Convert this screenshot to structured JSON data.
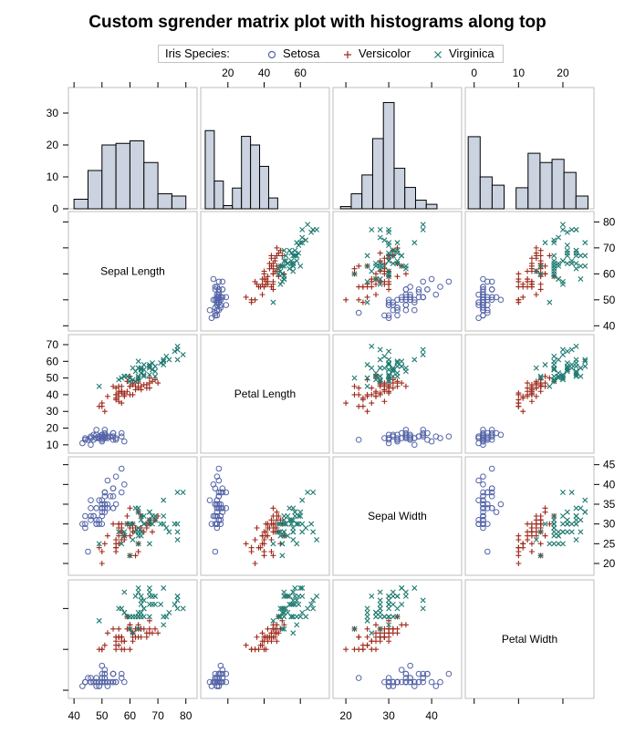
{
  "chart_data": {
    "type": "scatter-matrix",
    "title": "Custom sgrender matrix plot with histograms along top",
    "legend": {
      "title": "Iris Species:",
      "entries": [
        {
          "name": "Setosa",
          "marker": "circle",
          "color": "#5565a8"
        },
        {
          "name": "Versicolor",
          "marker": "plus",
          "color": "#9e2a1c"
        },
        {
          "name": "Virginica",
          "marker": "x",
          "color": "#1d7a70"
        }
      ],
      "placement": "top-center"
    },
    "variables": [
      {
        "name": "Sepal Length",
        "range": [
          38,
          84
        ],
        "ticks": [
          40,
          50,
          60,
          70,
          80
        ]
      },
      {
        "name": "Petal Length",
        "range": [
          5,
          76
        ],
        "ticks": [
          10,
          20,
          30,
          40,
          50,
          60,
          70
        ]
      },
      {
        "name": "Sepal Width",
        "range": [
          17,
          47
        ],
        "ticks": [
          20,
          25,
          30,
          35,
          40,
          45
        ]
      },
      {
        "name": "Petal Width",
        "range": [
          -2,
          27
        ],
        "ticks": [
          0,
          10,
          20
        ]
      }
    ],
    "histogram": {
      "ylim": [
        0,
        38
      ],
      "yticks": [
        0,
        10,
        20,
        30
      ],
      "fill": "#cbd3e1",
      "columns": [
        {
          "variable": "Sepal Length",
          "bin_start": 42.5,
          "bin_width": 5,
          "counts": [
            3,
            12,
            20,
            20.5,
            21.3,
            14.5,
            4.7,
            4
          ]
        },
        {
          "variable": "Petal Length",
          "bin_start": 10,
          "bin_width": 5,
          "counts": [
            24.5,
            8.7,
            1,
            6.5,
            22.7,
            20,
            13.3,
            3.4
          ]
        },
        {
          "variable": "Sepal Width",
          "bin_start": 20,
          "bin_width": 2.5,
          "counts": [
            0.7,
            4.7,
            10.6,
            22,
            33.3,
            12.7,
            6.7,
            2.7,
            1.4
          ]
        },
        {
          "variable": "Petal Width",
          "bin_start": 0,
          "bin_width": 2.7,
          "counts": [
            22.6,
            10,
            7.4,
            0,
            6.6,
            17.4,
            14.5,
            15.5,
            11.4,
            4
          ]
        }
      ]
    },
    "species_data": {
      "Setosa": [
        [
          51,
          14,
          35,
          2
        ],
        [
          49,
          14,
          30,
          2
        ],
        [
          47,
          13,
          32,
          2
        ],
        [
          46,
          15,
          31,
          2
        ],
        [
          50,
          14,
          36,
          2
        ],
        [
          54,
          17,
          39,
          4
        ],
        [
          46,
          14,
          34,
          3
        ],
        [
          50,
          15,
          34,
          2
        ],
        [
          44,
          14,
          29,
          2
        ],
        [
          49,
          15,
          31,
          1
        ],
        [
          54,
          15,
          37,
          2
        ],
        [
          48,
          16,
          34,
          2
        ],
        [
          48,
          14,
          30,
          1
        ],
        [
          43,
          11,
          30,
          1
        ],
        [
          58,
          12,
          40,
          2
        ],
        [
          57,
          15,
          44,
          4
        ],
        [
          54,
          13,
          39,
          4
        ],
        [
          51,
          14,
          35,
          3
        ],
        [
          57,
          17,
          38,
          3
        ],
        [
          51,
          15,
          38,
          3
        ],
        [
          54,
          17,
          34,
          2
        ],
        [
          51,
          15,
          37,
          4
        ],
        [
          46,
          10,
          36,
          2
        ],
        [
          51,
          17,
          33,
          5
        ],
        [
          48,
          19,
          34,
          2
        ],
        [
          50,
          16,
          30,
          2
        ],
        [
          50,
          16,
          34,
          4
        ],
        [
          52,
          15,
          35,
          2
        ],
        [
          52,
          14,
          34,
          2
        ],
        [
          47,
          16,
          32,
          2
        ],
        [
          48,
          16,
          31,
          2
        ],
        [
          54,
          15,
          34,
          4
        ],
        [
          52,
          15,
          41,
          1
        ],
        [
          55,
          14,
          42,
          2
        ],
        [
          49,
          15,
          31,
          2
        ],
        [
          50,
          12,
          32,
          2
        ],
        [
          55,
          13,
          35,
          2
        ],
        [
          49,
          14,
          36,
          1
        ],
        [
          44,
          13,
          30,
          2
        ],
        [
          51,
          15,
          34,
          2
        ],
        [
          50,
          13,
          35,
          3
        ],
        [
          45,
          13,
          23,
          3
        ],
        [
          44,
          13,
          32,
          2
        ],
        [
          50,
          16,
          35,
          6
        ],
        [
          51,
          19,
          38,
          4
        ],
        [
          48,
          14,
          30,
          3
        ],
        [
          51,
          16,
          38,
          2
        ],
        [
          46,
          14,
          32,
          2
        ],
        [
          53,
          15,
          37,
          2
        ],
        [
          50,
          14,
          33,
          2
        ]
      ],
      "Versicolor": [
        [
          70,
          47,
          32,
          14
        ],
        [
          64,
          45,
          32,
          15
        ],
        [
          69,
          49,
          31,
          15
        ],
        [
          55,
          40,
          23,
          13
        ],
        [
          65,
          46,
          28,
          15
        ],
        [
          57,
          45,
          28,
          13
        ],
        [
          63,
          47,
          33,
          16
        ],
        [
          49,
          33,
          24,
          10
        ],
        [
          66,
          46,
          29,
          13
        ],
        [
          52,
          39,
          27,
          14
        ],
        [
          50,
          35,
          20,
          10
        ],
        [
          59,
          42,
          30,
          15
        ],
        [
          60,
          40,
          22,
          10
        ],
        [
          61,
          47,
          29,
          14
        ],
        [
          56,
          36,
          29,
          13
        ],
        [
          67,
          44,
          31,
          14
        ],
        [
          56,
          45,
          30,
          15
        ],
        [
          58,
          41,
          27,
          10
        ],
        [
          62,
          45,
          22,
          15
        ],
        [
          56,
          39,
          25,
          11
        ],
        [
          59,
          48,
          32,
          18
        ],
        [
          61,
          40,
          28,
          13
        ],
        [
          63,
          49,
          25,
          15
        ],
        [
          61,
          47,
          28,
          12
        ],
        [
          64,
          43,
          29,
          13
        ],
        [
          66,
          44,
          30,
          14
        ],
        [
          68,
          48,
          28,
          14
        ],
        [
          67,
          50,
          30,
          17
        ],
        [
          60,
          45,
          29,
          15
        ],
        [
          57,
          35,
          26,
          10
        ],
        [
          55,
          38,
          24,
          11
        ],
        [
          55,
          37,
          24,
          10
        ],
        [
          58,
          39,
          27,
          12
        ],
        [
          60,
          51,
          27,
          16
        ],
        [
          54,
          45,
          30,
          15
        ],
        [
          60,
          45,
          34,
          16
        ],
        [
          67,
          47,
          31,
          15
        ],
        [
          63,
          44,
          23,
          13
        ],
        [
          56,
          41,
          30,
          13
        ],
        [
          55,
          40,
          25,
          13
        ],
        [
          55,
          44,
          26,
          12
        ],
        [
          61,
          46,
          30,
          14
        ],
        [
          58,
          40,
          26,
          12
        ],
        [
          50,
          33,
          23,
          10
        ],
        [
          56,
          42,
          27,
          13
        ],
        [
          57,
          42,
          30,
          12
        ],
        [
          57,
          42,
          29,
          13
        ],
        [
          62,
          43,
          29,
          13
        ],
        [
          51,
          30,
          25,
          11
        ],
        [
          57,
          41,
          28,
          13
        ]
      ],
      "Virginica": [
        [
          63,
          60,
          33,
          25
        ],
        [
          58,
          51,
          27,
          19
        ],
        [
          71,
          59,
          30,
          21
        ],
        [
          63,
          56,
          29,
          18
        ],
        [
          65,
          58,
          30,
          22
        ],
        [
          76,
          66,
          30,
          21
        ],
        [
          49,
          45,
          25,
          17
        ],
        [
          73,
          63,
          29,
          18
        ],
        [
          67,
          58,
          25,
          18
        ],
        [
          72,
          61,
          36,
          25
        ],
        [
          65,
          51,
          32,
          20
        ],
        [
          64,
          53,
          27,
          19
        ],
        [
          68,
          55,
          30,
          21
        ],
        [
          57,
          50,
          25,
          20
        ],
        [
          58,
          51,
          28,
          24
        ],
        [
          64,
          53,
          32,
          23
        ],
        [
          65,
          55,
          30,
          18
        ],
        [
          77,
          67,
          38,
          22
        ],
        [
          77,
          69,
          26,
          23
        ],
        [
          60,
          50,
          22,
          15
        ],
        [
          69,
          57,
          32,
          23
        ],
        [
          56,
          49,
          28,
          20
        ],
        [
          77,
          67,
          28,
          20
        ],
        [
          63,
          49,
          27,
          18
        ],
        [
          67,
          57,
          33,
          21
        ],
        [
          72,
          60,
          32,
          18
        ],
        [
          62,
          48,
          28,
          18
        ],
        [
          61,
          49,
          30,
          18
        ],
        [
          64,
          56,
          28,
          21
        ],
        [
          72,
          58,
          30,
          16
        ],
        [
          74,
          61,
          28,
          19
        ],
        [
          79,
          64,
          38,
          20
        ],
        [
          64,
          56,
          28,
          22
        ],
        [
          63,
          51,
          28,
          15
        ],
        [
          61,
          56,
          26,
          14
        ],
        [
          77,
          61,
          30,
          23
        ],
        [
          63,
          56,
          34,
          24
        ],
        [
          64,
          55,
          31,
          18
        ],
        [
          60,
          48,
          30,
          18
        ],
        [
          69,
          54,
          31,
          21
        ],
        [
          67,
          56,
          31,
          24
        ],
        [
          69,
          51,
          31,
          23
        ],
        [
          58,
          51,
          27,
          19
        ],
        [
          68,
          59,
          32,
          23
        ],
        [
          67,
          57,
          33,
          25
        ],
        [
          67,
          52,
          30,
          23
        ],
        [
          63,
          50,
          25,
          19
        ],
        [
          65,
          52,
          30,
          20
        ],
        [
          62,
          54,
          34,
          23
        ],
        [
          59,
          51,
          30,
          18
        ]
      ]
    }
  }
}
